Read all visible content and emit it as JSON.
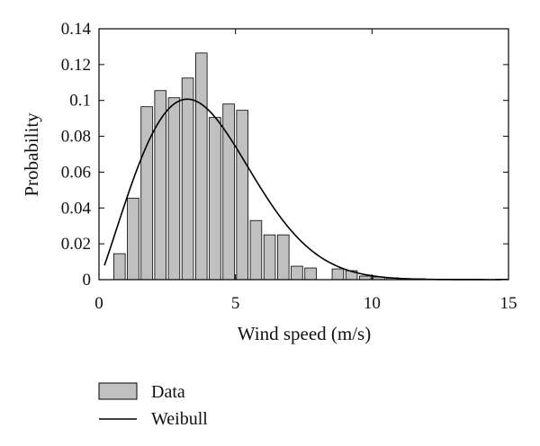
{
  "chart_data": {
    "type": "bar",
    "xlabel": "Wind speed (m/s)",
    "ylabel": "Probability",
    "xlim": [
      0,
      15
    ],
    "ylim": [
      0,
      0.14
    ],
    "xticks": [
      0,
      5,
      10,
      15
    ],
    "yticks": [
      0,
      0.02,
      0.04,
      0.06,
      0.08,
      0.1,
      0.12,
      0.14
    ],
    "ytick_labels": [
      "0",
      "0.02",
      "0.04",
      "0.06",
      "0.08",
      "0.1",
      "0.12",
      "0.14"
    ],
    "xtick_labels": [
      "0",
      "5",
      "10",
      "15"
    ],
    "bin_width": 0.5,
    "bar_color": "#c0c0c0",
    "line_color": "#000000",
    "legend_position": "bottom",
    "series": [
      {
        "name": "Data",
        "type": "bar",
        "x": [
          0.75,
          1.25,
          1.75,
          2.25,
          2.75,
          3.25,
          3.75,
          4.25,
          4.75,
          5.25,
          5.75,
          6.25,
          6.75,
          7.25,
          7.75,
          8.25,
          8.75,
          9.25,
          9.75,
          10.25,
          10.75,
          11.25,
          11.75,
          12.25,
          12.75,
          13.25,
          13.75,
          14.25,
          14.75
        ],
        "values": [
          0.0145,
          0.0455,
          0.0965,
          0.1055,
          0.1015,
          0.1125,
          0.1265,
          0.0905,
          0.098,
          0.0945,
          0.033,
          0.025,
          0.025,
          0.0075,
          0.0065,
          0.0,
          0.006,
          0.005,
          0.002,
          0.0015,
          0.001,
          0.0005,
          0.0005,
          0.0003,
          0.0003,
          0.0003,
          0.0003,
          0.0,
          0.0003
        ]
      },
      {
        "name": "Weibull",
        "type": "line",
        "shape_k": 2.1,
        "scale_c": 4.4
      }
    ]
  }
}
